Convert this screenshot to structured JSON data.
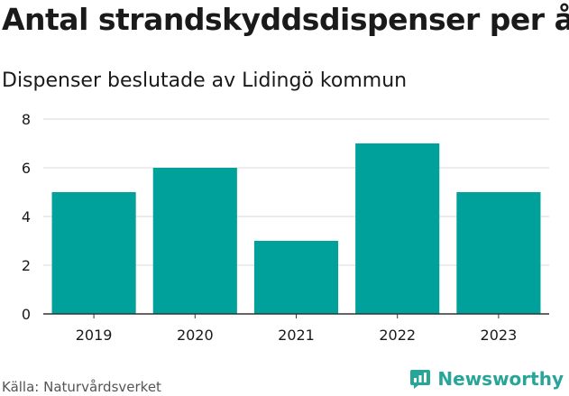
{
  "header": {
    "title": "Antal strandskyddsdispenser per år",
    "subtitle": "Dispenser beslutade av Lidingö kommun"
  },
  "footer": {
    "source": "Källa: Naturvårdsverket",
    "brand_name": "Newsworthy",
    "brand_icon": "newsworthy-logo-icon"
  },
  "colors": {
    "bar": "#00a19a",
    "grid": "#d9d9d9",
    "axis": "#333333",
    "brand": "#27a598"
  },
  "chart_data": {
    "type": "bar",
    "title": "Antal strandskyddsdispenser per år",
    "subtitle": "Dispenser beslutade av Lidingö kommun",
    "categories": [
      "2019",
      "2020",
      "2021",
      "2022",
      "2023"
    ],
    "values": [
      5,
      6,
      3,
      7,
      5
    ],
    "xlabel": "",
    "ylabel": "",
    "ylim": [
      0,
      8
    ],
    "yticks": [
      0,
      2,
      4,
      6,
      8
    ],
    "grid": true
  }
}
